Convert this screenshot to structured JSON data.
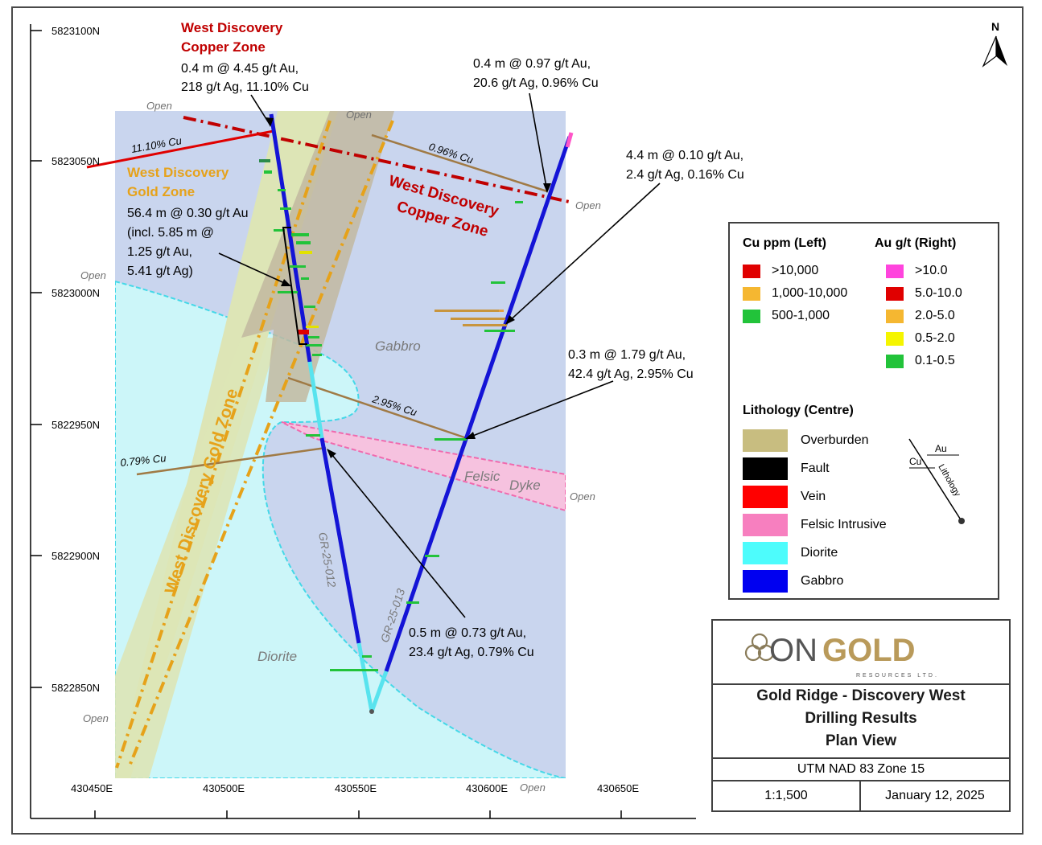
{
  "map": {
    "northings": [
      "5823100N",
      "5823050N",
      "5823000N",
      "5822950N",
      "5822900N",
      "5822850N"
    ],
    "eastings": [
      "430450E",
      "430500E",
      "430550E",
      "430600E",
      "430650E"
    ],
    "north_label": "N",
    "open_label": "Open",
    "zone_labels": {
      "wd_gold_rot": "West Discovery Gold Zone",
      "wd_copper_rot": "West Discovery Copper Zone",
      "wd_copper_line1": "West Discovery",
      "wd_copper_line2": "Copper Zone"
    },
    "litho_labels": {
      "gabbro": "Gabbro",
      "felsic": "Felsic",
      "dyke": "Dyke",
      "diorite": "Diorite"
    },
    "holes": {
      "h1": "GR-25-012",
      "h2": "GR-25-013"
    },
    "cu_labels": {
      "c1": "11.10% Cu",
      "c2": "0.96% Cu",
      "c3": "2.95% Cu",
      "c4": "0.79% Cu"
    },
    "callouts": {
      "wdcz_title1": "West Discovery",
      "wdcz_title2": "Copper Zone",
      "a1_l1": "0.4 m @ 4.45 g/t Au,",
      "a1_l2": "218 g/t Ag, 11.10% Cu",
      "a2_l1": "0.4 m @ 0.97 g/t Au,",
      "a2_l2": "20.6 g/t Ag, 0.96% Cu",
      "a3_l1": "4.4 m @ 0.10 g/t Au,",
      "a3_l2": "2.4 g/t Ag, 0.16% Cu",
      "wdgz_title1": "West Discovery",
      "wdgz_title2": "Gold Zone",
      "a4_l1": "56.4 m @ 0.30 g/t Au",
      "a4_l2": "(incl. 5.85 m @",
      "a4_l3": "1.25 g/t Au,",
      "a4_l4": "5.41 g/t Ag)",
      "a5_l1": "0.3 m @ 1.79 g/t Au,",
      "a5_l2": "42.4 g/t Ag, 2.95% Cu",
      "a6_l1": "0.5 m @ 0.73 g/t Au,",
      "a6_l2": "23.4 g/t Ag, 0.79% Cu"
    },
    "colors": {
      "gabbro_area": "#c9d5ee",
      "diorite_area": "#ccf6f9",
      "gold_zone": "#dde5b6",
      "overburden_zone": "#c2b9a0",
      "dyke_area": "#f6c2df",
      "drill_gabbro": "#1414d6",
      "drill_diorite": "#58e3ee",
      "copper_zone_line": "#c00000",
      "gold_zone_line": "#e6a21a"
    }
  },
  "legend": {
    "cu_title": "Cu ppm (Left)",
    "au_title": "Au g/t (Right)",
    "cu_items": [
      {
        "label": ">10,000",
        "color": "#e00000"
      },
      {
        "label": "1,000-10,000",
        "color": "#f5b731"
      },
      {
        "label": "500-1,000",
        "color": "#22c33a"
      }
    ],
    "au_items": [
      {
        "label": ">10.0",
        "color": "#ff44dd"
      },
      {
        "label": "5.0-10.0",
        "color": "#e00000"
      },
      {
        "label": "2.0-5.0",
        "color": "#f5b731"
      },
      {
        "label": "0.5-2.0",
        "color": "#f5f500"
      },
      {
        "label": "0.1-0.5",
        "color": "#22c33a"
      }
    ],
    "litho_title": "Lithology (Centre)",
    "litho_items": [
      {
        "label": "Overburden",
        "color": "#c8bd80"
      },
      {
        "label": "Fault",
        "color": "#000000"
      },
      {
        "label": "Vein",
        "color": "#ff0000"
      },
      {
        "label": "Felsic Intrusive",
        "color": "#f77fbf"
      },
      {
        "label": "Diorite",
        "color": "#4dfcfc"
      },
      {
        "label": "Gabbro",
        "color": "#0000f0"
      }
    ],
    "diagram": {
      "au": "Au",
      "cu": "Cu",
      "litho": "Lithology"
    }
  },
  "titleblock": {
    "logo_on": "ON",
    "logo_gold": "GOLD",
    "logo_sub": "RESOURCES LTD.",
    "title_l1": "Gold Ridge - Discovery West",
    "title_l2": "Drilling Results",
    "title_l3": "Plan View",
    "utm": "UTM NAD 83 Zone 15",
    "scale": "1:1,500",
    "date": "January 12, 2025"
  }
}
